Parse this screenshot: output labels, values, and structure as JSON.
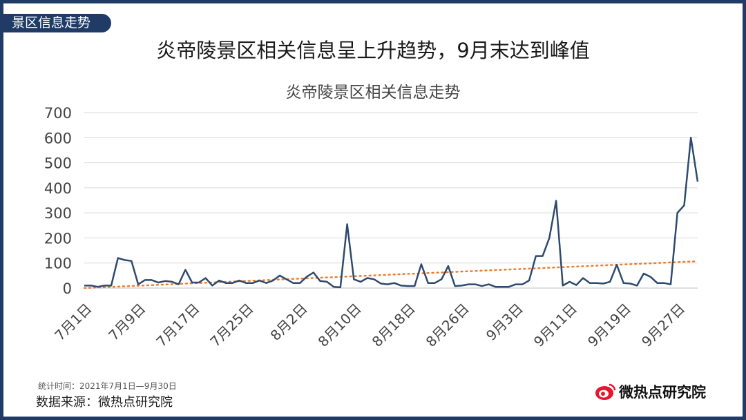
{
  "section_tag": "景区信息走势",
  "headline": "炎帝陵景区相关信息呈上升趋势，9月末达到峰值",
  "footer": {
    "stat_period": "统计时间：2021年7月1日—9月30日",
    "source": "数据来源：微热点研究院"
  },
  "brand": {
    "name": "微热点研究院",
    "logo_icon": "weibo-eye-icon",
    "logo_color": "#e6162d"
  },
  "colors": {
    "frame": "#1f3b66",
    "series_line": "#2e4a6e",
    "trend_line": "#ed7d31"
  },
  "chart_data": {
    "type": "line",
    "title": "炎帝陵景区相关信息走势",
    "xlabel": "",
    "ylabel": "",
    "ylim": [
      0,
      700
    ],
    "yticks": [
      0,
      100,
      200,
      300,
      400,
      500,
      600,
      700
    ],
    "grid": "horizontal",
    "x_tick_labels": [
      "7月1日",
      "7月9日",
      "7月17日",
      "7月25日",
      "8月2日",
      "8月10日",
      "8月18日",
      "8月26日",
      "9月3日",
      "9月11日",
      "9月19日",
      "9月27日"
    ],
    "x_tick_step": 8,
    "x_start": "2021-07-01",
    "x_end": "2021-09-30",
    "series": [
      {
        "values": [
          10,
          10,
          5,
          10,
          10,
          120,
          112,
          108,
          15,
          32,
          32,
          22,
          28,
          25,
          15,
          73,
          22,
          22,
          40,
          10,
          30,
          20,
          20,
          30,
          20,
          20,
          30,
          20,
          30,
          50,
          35,
          20,
          20,
          45,
          62,
          28,
          25,
          5,
          3,
          255,
          35,
          25,
          40,
          35,
          18,
          15,
          20,
          10,
          8,
          8,
          95,
          20,
          20,
          35,
          88,
          8,
          10,
          15,
          15,
          8,
          15,
          5,
          5,
          5,
          15,
          15,
          30,
          128,
          128,
          200,
          348,
          10,
          25,
          12,
          40,
          20,
          20,
          18,
          25,
          93,
          20,
          18,
          10,
          58,
          45,
          20,
          20,
          15,
          300,
          330,
          600,
          425
        ]
      },
      {
        "style": "dotted",
        "kind": "linear-trend",
        "values": [
          0,
          107
        ]
      }
    ]
  }
}
